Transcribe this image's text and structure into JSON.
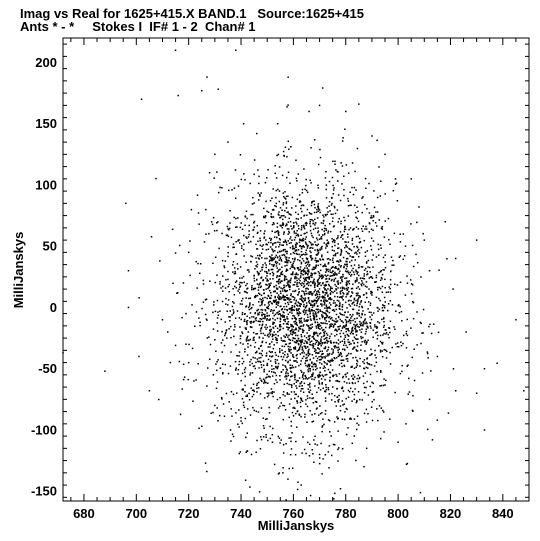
{
  "title_line1": "Imag vs Real for 1625+415.X BAND.1   Source:1625+415",
  "title_line2": "Ants * - *     Stokes I  IF# 1 - 2  Chan# 1",
  "chart_data": {
    "type": "scatter",
    "title": "Imag vs Real for 1625+415.X BAND.1   Source:1625+415",
    "subtitle": "Ants * - *     Stokes I  IF# 1 - 2  Chan# 1",
    "xlabel": "MilliJanskys",
    "ylabel": "MilliJanskys",
    "xlim": [
      672,
      850
    ],
    "ylim": [
      -158,
      220
    ],
    "xticks": [
      680,
      700,
      720,
      740,
      760,
      780,
      800,
      820,
      840
    ],
    "yticks": [
      -150,
      -100,
      -50,
      0,
      50,
      100,
      150,
      200
    ],
    "grid": false,
    "marker_color": "#000000",
    "points": [
      [
        715,
        210
      ],
      [
        738,
        210
      ],
      [
        758,
        188
      ],
      [
        727,
        188
      ],
      [
        725,
        177
      ],
      [
        716,
        173
      ],
      [
        770,
        165
      ],
      [
        785,
        166
      ],
      [
        702,
        170
      ],
      [
        741,
        150
      ],
      [
        696,
        85
      ],
      [
        709,
        38
      ],
      [
        697,
        30
      ],
      [
        697,
        0
      ],
      [
        672,
        -37
      ],
      [
        688,
        -52
      ],
      [
        701,
        -40
      ],
      [
        715,
        -31
      ],
      [
        705,
        -68
      ],
      [
        712,
        -20
      ],
      [
        725,
        -97
      ],
      [
        736,
        -100
      ],
      [
        744,
        -120
      ],
      [
        756,
        -135
      ],
      [
        763,
        -145
      ],
      [
        778,
        -148
      ],
      [
        787,
        -130
      ],
      [
        800,
        -110
      ],
      [
        815,
        -92
      ],
      [
        822,
        -68
      ],
      [
        830,
        55
      ],
      [
        845,
        -10
      ],
      [
        848,
        -68
      ],
      [
        833,
        -100
      ],
      [
        822,
        40
      ],
      [
        818,
        70
      ],
      [
        808,
        82
      ],
      [
        799,
        105
      ],
      [
        795,
        125
      ],
      [
        790,
        140
      ],
      [
        780,
        160
      ],
      [
        766,
        160
      ],
      [
        754,
        150
      ],
      [
        746,
        142
      ],
      [
        735,
        135
      ],
      [
        730,
        125
      ],
      [
        728,
        110
      ],
      [
        732,
        98
      ],
      [
        724,
        68
      ],
      [
        720,
        45
      ],
      [
        718,
        20
      ],
      [
        719,
        -5
      ],
      [
        719,
        -30
      ],
      [
        722,
        -60
      ],
      [
        730,
        -80
      ],
      [
        740,
        -90
      ],
      [
        752,
        -110
      ],
      [
        770,
        -120
      ],
      [
        788,
        -115
      ],
      [
        803,
        -95
      ],
      [
        812,
        -75
      ],
      [
        826,
        -20
      ],
      [
        833,
        -50
      ],
      [
        821,
        15
      ],
      [
        812,
        30
      ],
      [
        830,
        -70
      ],
      [
        810,
        55
      ],
      [
        815,
        -40
      ],
      [
        713,
        -45
      ],
      [
        710,
        -10
      ]
    ],
    "core_distribution": {
      "count": 3800,
      "x_mean": 765,
      "x_std": 17,
      "y_mean": 0,
      "y_std": 50
    }
  }
}
